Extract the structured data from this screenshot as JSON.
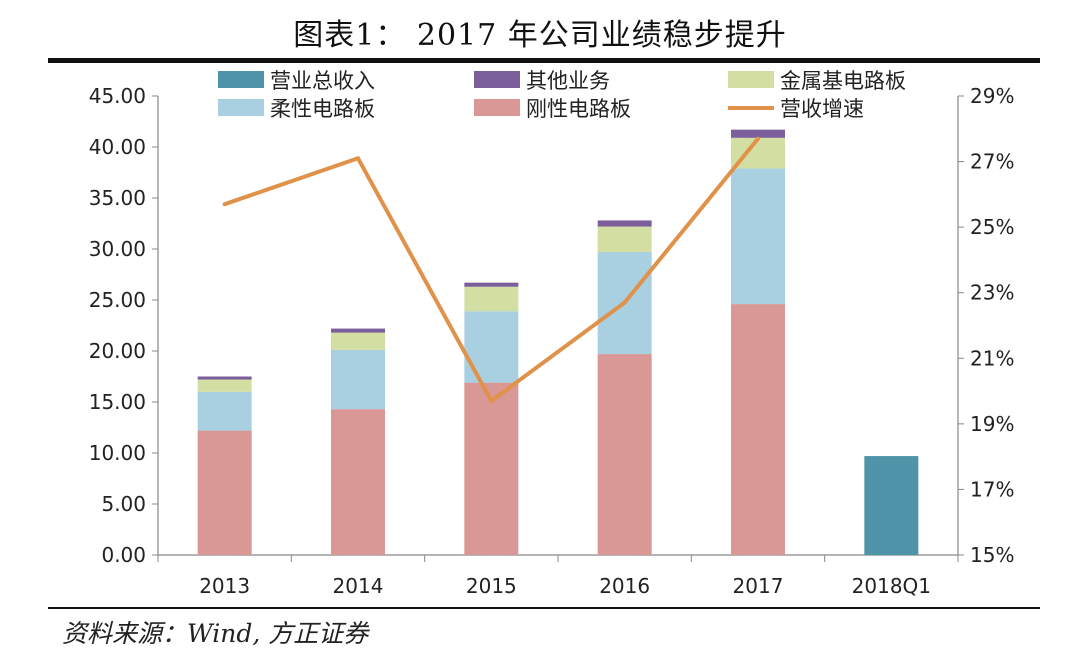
{
  "title": "图表1： 2017 年公司业绩稳步提升",
  "source": "资料来源：Wind, 方正证券",
  "chart_data": {
    "type": "bar",
    "stacked": true,
    "categories": [
      "2013",
      "2014",
      "2015",
      "2016",
      "2017",
      "2018Q1"
    ],
    "series": [
      {
        "name": "营业总收入",
        "color": "#4f94a8",
        "values": [
          null,
          null,
          null,
          null,
          null,
          9.7
        ]
      },
      {
        "name": "刚性电路板",
        "color": "#d99795",
        "values": [
          12.2,
          14.3,
          16.9,
          19.7,
          24.6,
          null
        ]
      },
      {
        "name": "柔性电路板",
        "color": "#a8d0e0",
        "values": [
          3.8,
          5.8,
          7.0,
          10.0,
          13.3,
          null
        ]
      },
      {
        "name": "金属基电路板",
        "color": "#d3dfa2",
        "values": [
          1.2,
          1.7,
          2.4,
          2.5,
          3.0,
          null
        ]
      },
      {
        "name": "其他业务",
        "color": "#7b5f9b",
        "values": [
          0.3,
          0.4,
          0.4,
          0.6,
          0.8,
          null
        ]
      }
    ],
    "line_series": {
      "name": "营收增速",
      "color": "#e0914a",
      "axis": "right",
      "values": [
        "25.7%",
        "27.1%",
        "19.7%",
        "22.7%",
        "27.7%",
        null
      ]
    },
    "legend_order": [
      "营业总收入",
      "其他业务",
      "金属基电路板",
      "柔性电路板",
      "刚性电路板",
      "营收增速"
    ],
    "y_left": {
      "min": 0,
      "max": 45,
      "ticks": [
        "0.00",
        "5.00",
        "10.00",
        "15.00",
        "20.00",
        "25.00",
        "30.00",
        "35.00",
        "40.00",
        "45.00"
      ]
    },
    "y_right": {
      "min": 15,
      "max": 29,
      "ticks": [
        "15%",
        "17%",
        "19%",
        "21%",
        "23%",
        "25%",
        "27%",
        "29%"
      ]
    },
    "legend_position": "top",
    "grid": false
  }
}
